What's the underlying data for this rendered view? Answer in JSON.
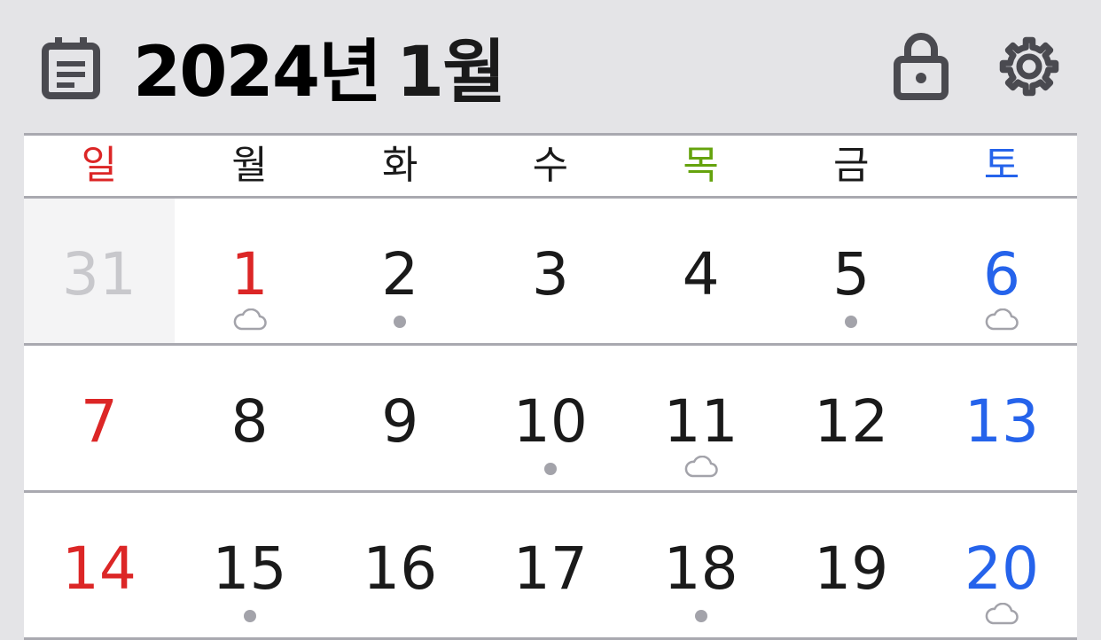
{
  "colors": {
    "sunday": "#dc2626",
    "saturday": "#2563eb",
    "thursday": "#65a30d",
    "weekday": "#1a1a1a",
    "muted": "#c8c8cc",
    "marker": "#a3a3aa"
  },
  "header": {
    "icon": "calendar-icon",
    "year_label": "2024년",
    "month_label": "1월",
    "lock_icon": "lock-icon",
    "settings_icon": "gear-icon"
  },
  "weekdays": [
    "일",
    "월",
    "화",
    "수",
    "목",
    "금",
    "토"
  ],
  "weeks": [
    [
      {
        "day": "31",
        "other": true,
        "marker": "none"
      },
      {
        "day": "1",
        "holiday": true,
        "marker": "cloud"
      },
      {
        "day": "2",
        "marker": "dot"
      },
      {
        "day": "3",
        "marker": "none"
      },
      {
        "day": "4",
        "marker": "none"
      },
      {
        "day": "5",
        "marker": "dot"
      },
      {
        "day": "6",
        "marker": "cloud"
      }
    ],
    [
      {
        "day": "7",
        "marker": "none"
      },
      {
        "day": "8",
        "marker": "none"
      },
      {
        "day": "9",
        "marker": "none"
      },
      {
        "day": "10",
        "marker": "dot"
      },
      {
        "day": "11",
        "marker": "cloud"
      },
      {
        "day": "12",
        "marker": "none"
      },
      {
        "day": "13",
        "marker": "none"
      }
    ],
    [
      {
        "day": "14",
        "marker": "none"
      },
      {
        "day": "15",
        "marker": "dot"
      },
      {
        "day": "16",
        "marker": "none"
      },
      {
        "day": "17",
        "marker": "none"
      },
      {
        "day": "18",
        "marker": "dot"
      },
      {
        "day": "19",
        "marker": "none"
      },
      {
        "day": "20",
        "marker": "cloud"
      }
    ]
  ]
}
